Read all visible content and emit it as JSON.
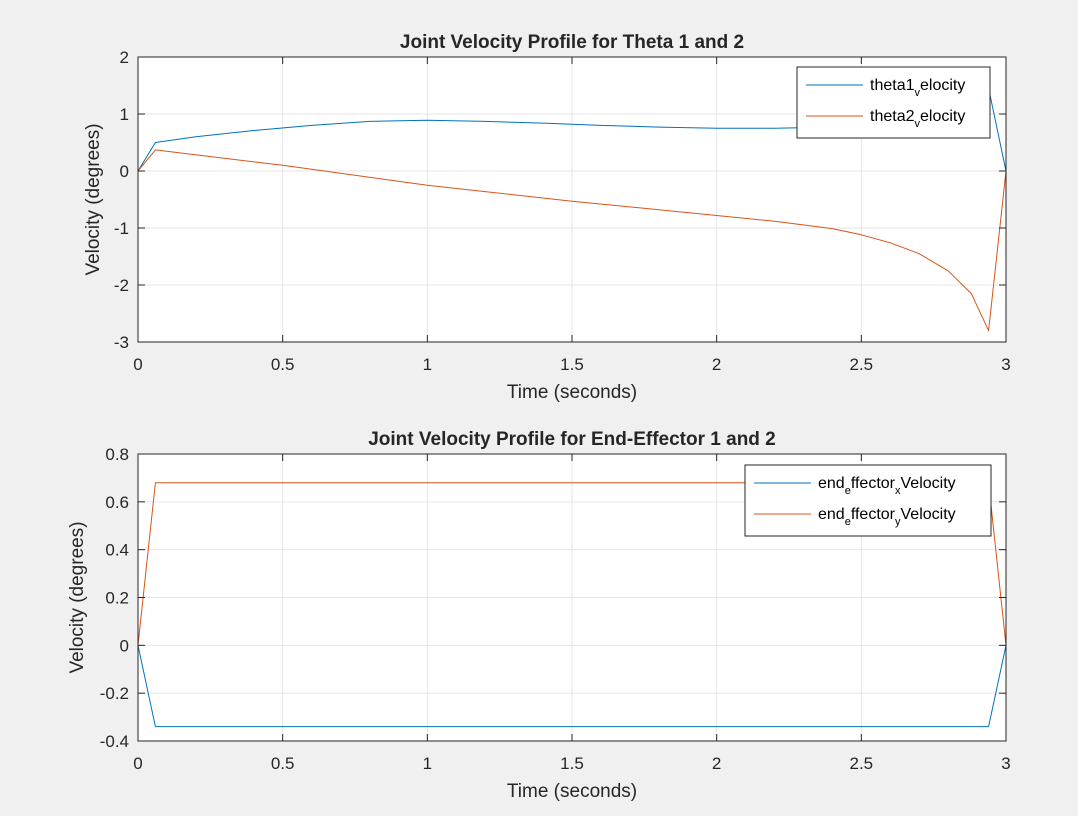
{
  "colors": {
    "figure_bg": "#f0f0f0",
    "axes_bg": "#ffffff",
    "grid": "#e6e6e6",
    "axis": "#262626",
    "series1": "#0072bd",
    "series2": "#d95319"
  },
  "chart_data": [
    {
      "type": "line",
      "title": "Joint Velocity Profile for Theta 1 and 2",
      "xlabel": "Time (seconds)",
      "ylabel": "Velocity (degrees)",
      "xlim": [
        0,
        3
      ],
      "ylim": [
        -3,
        2
      ],
      "xticks": [
        0,
        0.5,
        1,
        1.5,
        2,
        2.5,
        3
      ],
      "xtick_labels": [
        "0",
        "0.5",
        "1",
        "1.5",
        "2",
        "2.5",
        "3"
      ],
      "yticks": [
        -3,
        -2,
        -1,
        0,
        1,
        2
      ],
      "ytick_labels": [
        "-3",
        "-2",
        "-1",
        "0",
        "1",
        "2"
      ],
      "grid": true,
      "legend_position": "top-right",
      "series": [
        {
          "name_parts": [
            [
              "theta1",
              "base"
            ],
            [
              "v",
              "sub"
            ],
            [
              "elocity",
              "base"
            ]
          ],
          "color": "#0072bd",
          "x": [
            0,
            0.06,
            0.2,
            0.4,
            0.6,
            0.8,
            1.0,
            1.2,
            1.4,
            1.6,
            1.8,
            2.0,
            2.2,
            2.4,
            2.6,
            2.8,
            2.94,
            3.0
          ],
          "y": [
            0,
            0.5,
            0.6,
            0.71,
            0.8,
            0.87,
            0.89,
            0.87,
            0.84,
            0.8,
            0.77,
            0.75,
            0.75,
            0.77,
            0.82,
            0.95,
            1.45,
            0
          ]
        },
        {
          "name_parts": [
            [
              "theta2",
              "base"
            ],
            [
              "v",
              "sub"
            ],
            [
              "elocity",
              "base"
            ]
          ],
          "color": "#d95319",
          "x": [
            0,
            0.06,
            0.5,
            1.0,
            1.5,
            2.0,
            2.2,
            2.4,
            2.5,
            2.6,
            2.7,
            2.8,
            2.88,
            2.94,
            3.0
          ],
          "y": [
            0,
            0.37,
            0.1,
            -0.25,
            -0.53,
            -0.78,
            -0.88,
            -1.01,
            -1.12,
            -1.26,
            -1.45,
            -1.75,
            -2.15,
            -2.8,
            0
          ]
        }
      ]
    },
    {
      "type": "line",
      "title": "Joint Velocity Profile for End-Effector 1 and 2",
      "xlabel": "Time (seconds)",
      "ylabel": "Velocity (degrees)",
      "xlim": [
        0,
        3
      ],
      "ylim": [
        -0.4,
        0.8
      ],
      "xticks": [
        0,
        0.5,
        1,
        1.5,
        2,
        2.5,
        3
      ],
      "xtick_labels": [
        "0",
        "0.5",
        "1",
        "1.5",
        "2",
        "2.5",
        "3"
      ],
      "yticks": [
        -0.4,
        -0.2,
        0,
        0.2,
        0.4,
        0.6,
        0.8
      ],
      "ytick_labels": [
        "-0.4",
        "-0.2",
        "0",
        "0.2",
        "0.4",
        "0.6",
        "0.8"
      ],
      "grid": true,
      "legend_position": "top-right",
      "series": [
        {
          "name_parts": [
            [
              "end",
              "base"
            ],
            [
              "e",
              "sub"
            ],
            [
              "ffector",
              "base"
            ],
            [
              "x",
              "sub"
            ],
            [
              "Velocity",
              "base"
            ]
          ],
          "color": "#0072bd",
          "x": [
            0,
            0.06,
            2.94,
            3.0
          ],
          "y": [
            0,
            -0.34,
            -0.34,
            0
          ]
        },
        {
          "name_parts": [
            [
              "end",
              "base"
            ],
            [
              "e",
              "sub"
            ],
            [
              "ffector",
              "base"
            ],
            [
              "y",
              "sub"
            ],
            [
              "Velocity",
              "base"
            ]
          ],
          "color": "#d95319",
          "x": [
            0,
            0.06,
            2.94,
            3.0
          ],
          "y": [
            0,
            0.68,
            0.68,
            0
          ]
        }
      ]
    }
  ]
}
